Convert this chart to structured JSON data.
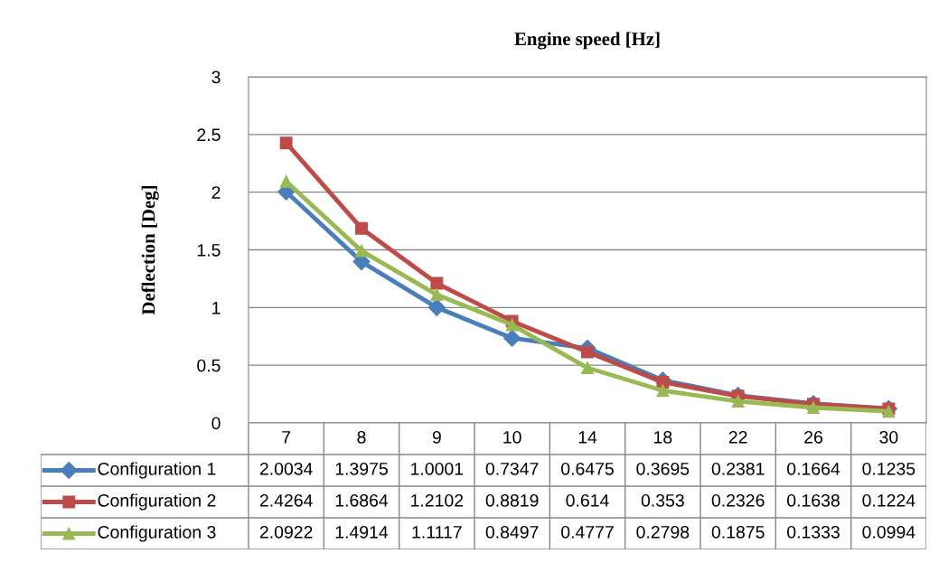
{
  "chart_data": {
    "type": "line",
    "title": "Engine speed [Hz]",
    "ylabel": "Deflection [Deg]",
    "categories": [
      "7",
      "8",
      "9",
      "10",
      "14",
      "18",
      "22",
      "26",
      "30"
    ],
    "series": [
      {
        "name": "Configuration 1",
        "color": "#4a7ebb",
        "marker": "diamond",
        "values": [
          2.0034,
          1.3975,
          1.0001,
          0.7347,
          0.6475,
          0.3695,
          0.2381,
          0.1664,
          0.1235
        ]
      },
      {
        "name": "Configuration 2",
        "color": "#be4b48",
        "marker": "square",
        "values": [
          2.4264,
          1.6864,
          1.2102,
          0.8819,
          0.614,
          0.353,
          0.2326,
          0.1638,
          0.1224
        ]
      },
      {
        "name": "Configuration 3",
        "color": "#98b954",
        "marker": "triangle",
        "values": [
          2.0922,
          1.4914,
          1.1117,
          0.8497,
          0.4777,
          0.2798,
          0.1875,
          0.1333,
          0.0994
        ]
      }
    ],
    "ylim": [
      0,
      3
    ],
    "yticks": [
      0,
      0.5,
      1,
      1.5,
      2,
      2.5,
      3
    ],
    "grid": "y",
    "legend": "bottom",
    "data_labels": true,
    "line_style": "solid"
  }
}
